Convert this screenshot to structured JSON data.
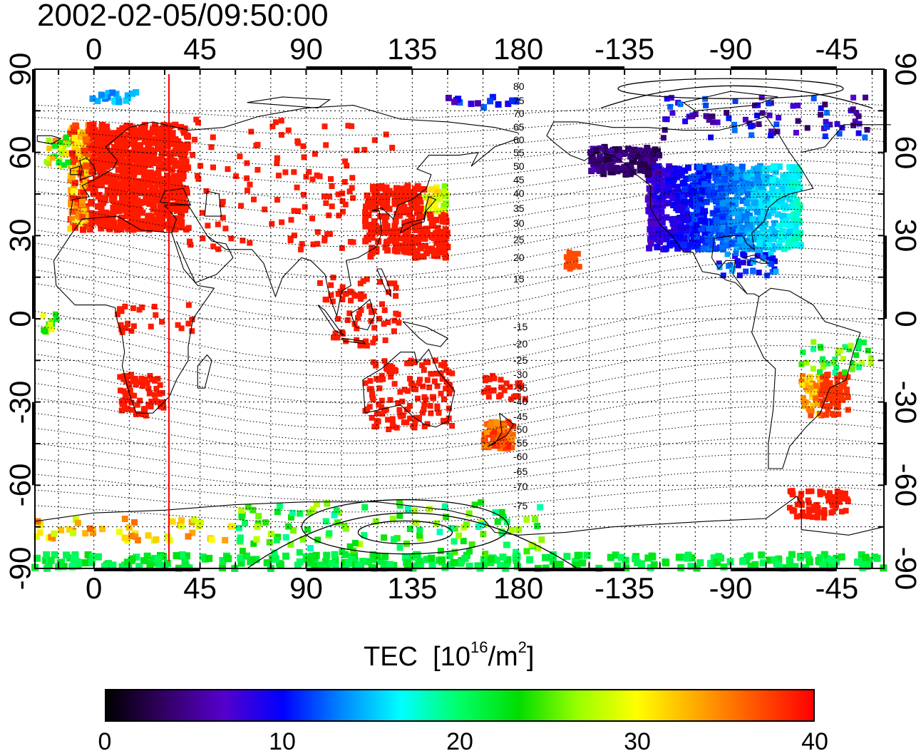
{
  "title": "2002-02-05/09:50:00",
  "x_ticks": [
    "0",
    "45",
    "90",
    "135",
    "180",
    "-135",
    "-90",
    "-45"
  ],
  "y_ticks": [
    "90",
    "60",
    "30",
    "0",
    "-30",
    "-60",
    "-90"
  ],
  "colorbar": {
    "title": "TEC",
    "unit_base": "[10",
    "unit_exp": "16",
    "unit_mid": "/m",
    "unit_exp2": "2",
    "unit_end": "]",
    "ticks": [
      "0",
      "10",
      "20",
      "30",
      "40"
    ],
    "min": 0,
    "max": 40,
    "colors": [
      "#000000",
      "#330066",
      "#5500cc",
      "#0000ff",
      "#0088ff",
      "#00ffff",
      "#00ff66",
      "#00dd00",
      "#99ff00",
      "#ffff00",
      "#ffaa00",
      "#ff5500",
      "#ff0000"
    ]
  },
  "contour_labels_north": [
    "80",
    "75",
    "70",
    "65",
    "60",
    "55",
    "50",
    "45",
    "40",
    "35",
    "30",
    "25",
    "20",
    "15"
  ],
  "contour_labels_south": [
    "-15",
    "-20",
    "-25",
    "-30",
    "-35",
    "-40",
    "-45",
    "-50",
    "-55",
    "-60",
    "-65",
    "-70",
    "-75"
  ],
  "map": {
    "lon_range": [
      -25,
      335
    ],
    "lat_range": [
      -90,
      90
    ],
    "terminator_lon": 33,
    "terminator_color": "#ff0000"
  }
}
